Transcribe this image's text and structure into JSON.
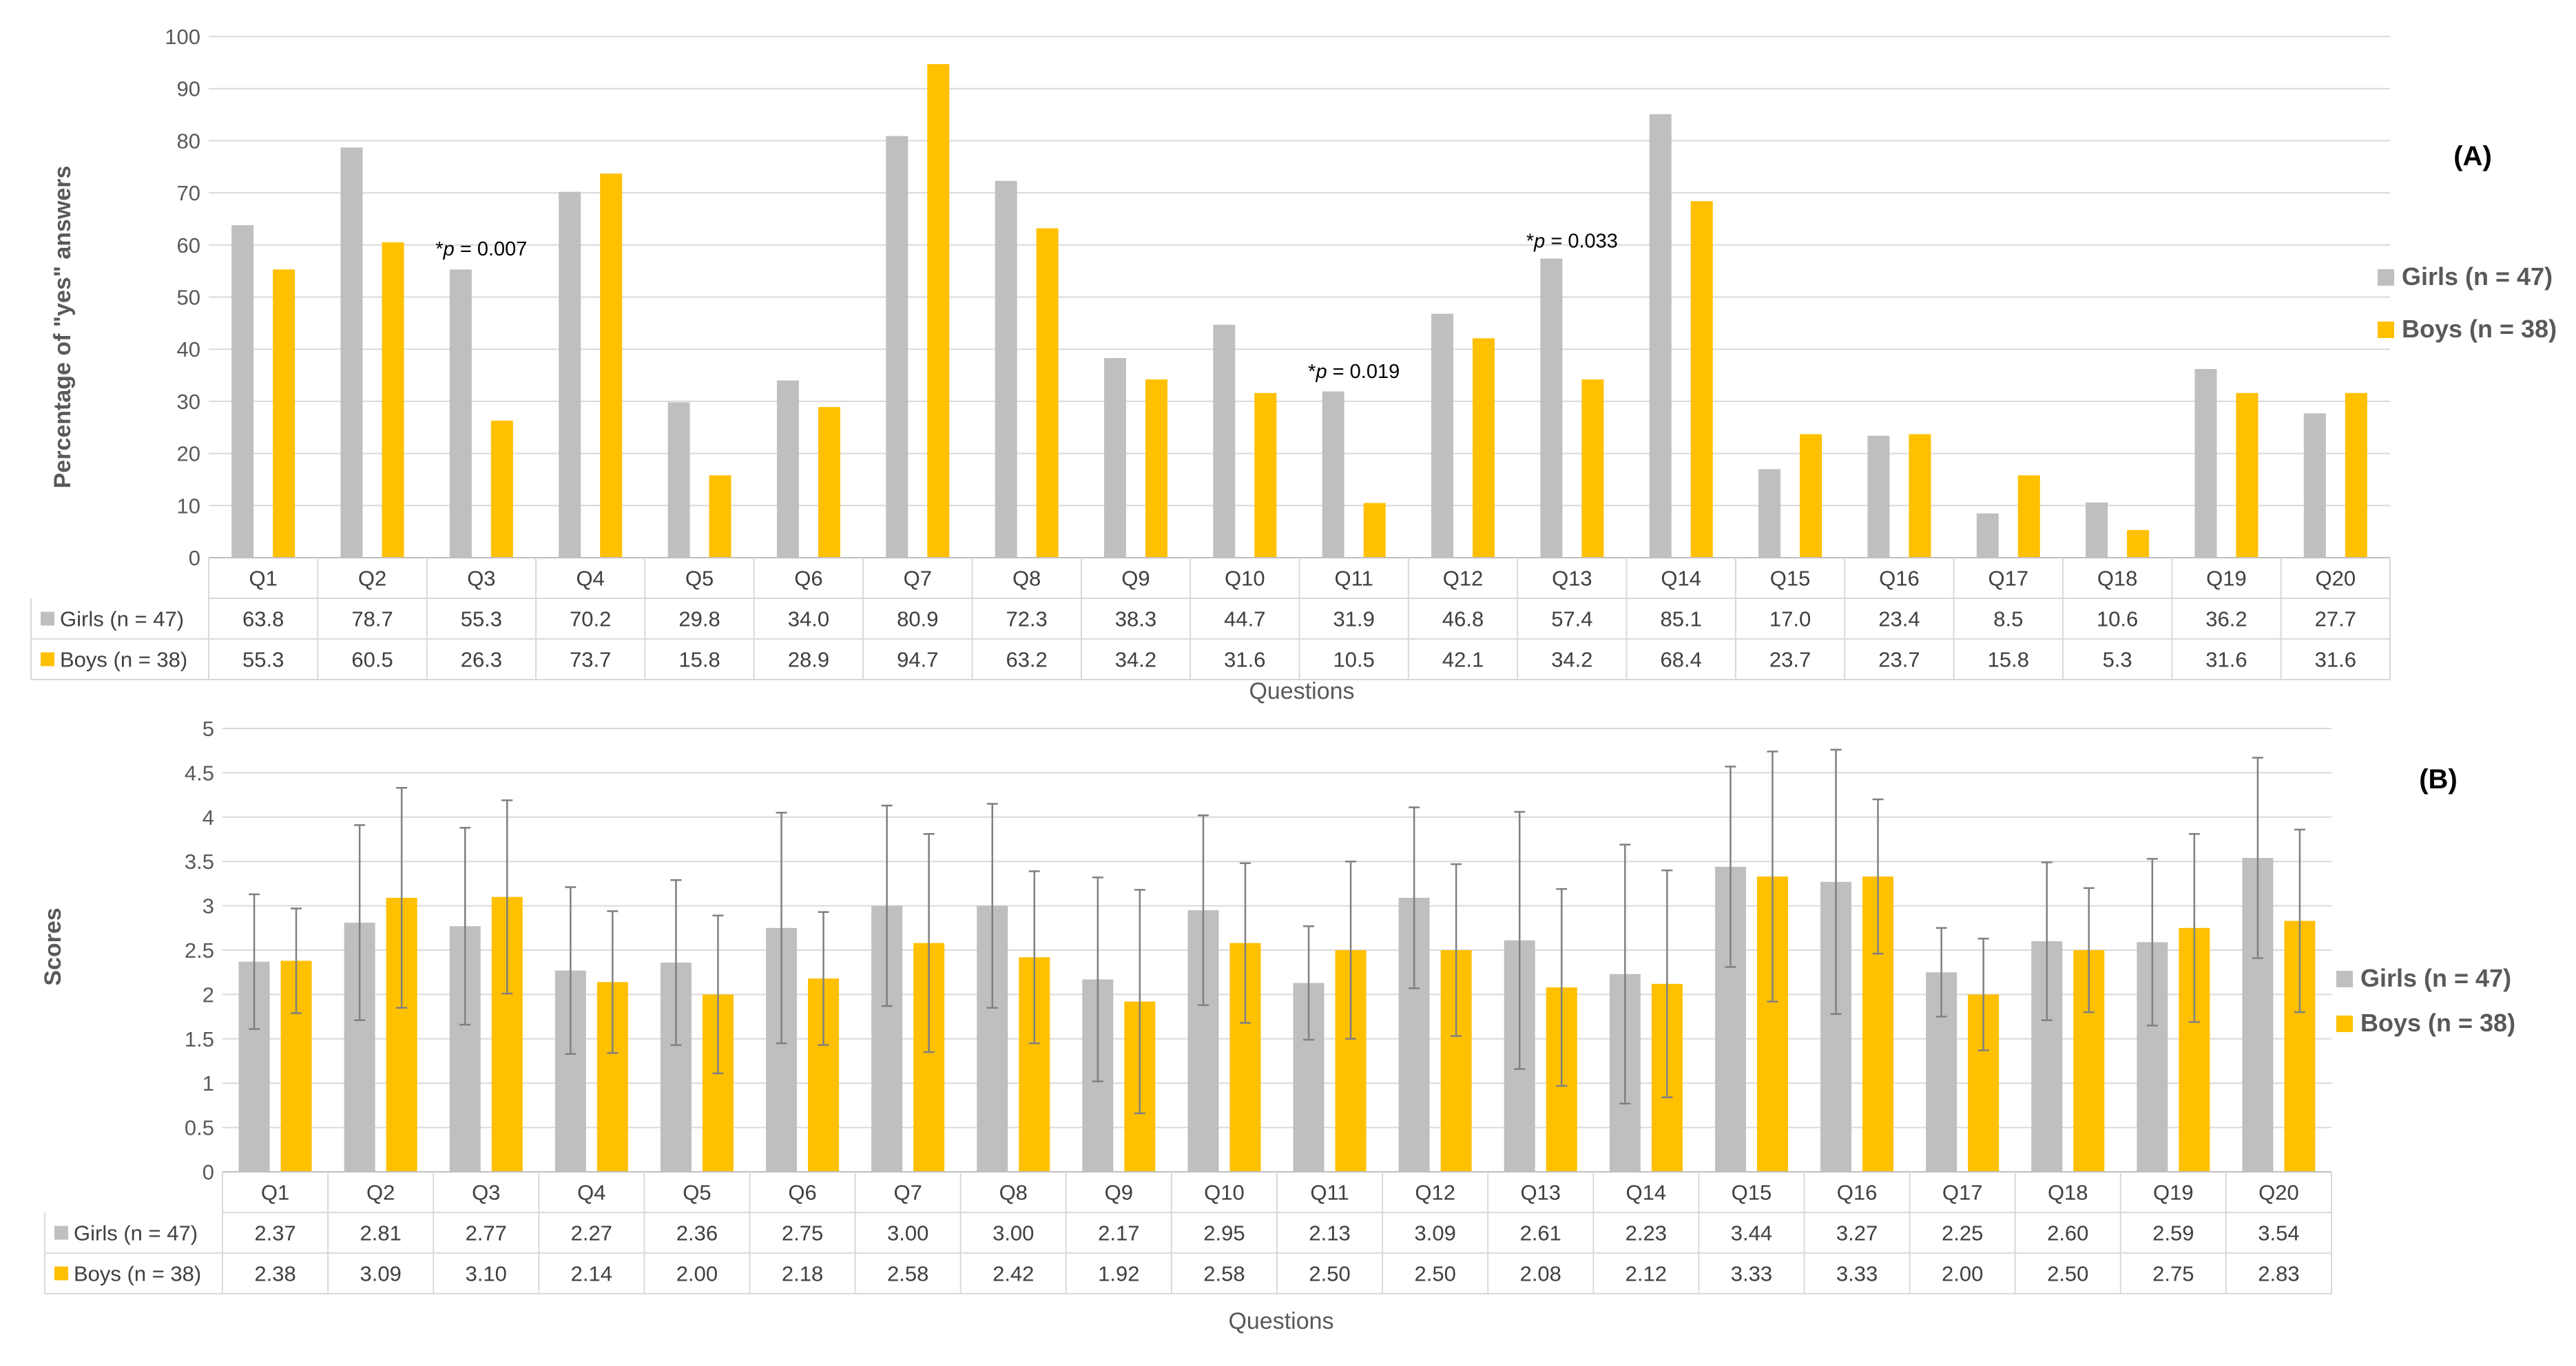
{
  "chart_data": [
    {
      "type": "bar",
      "panel_label": "(A)",
      "ylabel": "Percentage of \"yes\" answers",
      "xlabel": "Questions",
      "ylim": [
        0,
        100
      ],
      "yticks": [
        0,
        10,
        20,
        30,
        40,
        50,
        60,
        70,
        80,
        90,
        100
      ],
      "grid": true,
      "legend_position": "right",
      "categories": [
        "Q1",
        "Q2",
        "Q3",
        "Q4",
        "Q5",
        "Q6",
        "Q7",
        "Q8",
        "Q9",
        "Q10",
        "Q11",
        "Q12",
        "Q13",
        "Q14",
        "Q15",
        "Q16",
        "Q17",
        "Q18",
        "Q19",
        "Q20"
      ],
      "series": [
        {
          "name": "Girls (n = 47)",
          "color": "#bfbfbf",
          "values": [
            63.8,
            78.7,
            55.3,
            70.2,
            29.8,
            34.0,
            80.9,
            72.3,
            38.3,
            44.7,
            31.9,
            46.8,
            57.4,
            85.1,
            17.0,
            23.4,
            8.5,
            10.6,
            36.2,
            27.7
          ],
          "labels": [
            "63.8",
            "78.7",
            "55.3",
            "70.2",
            "29.8",
            "34.0",
            "80.9",
            "72.3",
            "38.3",
            "44.7",
            "31.9",
            "46.8",
            "57.4",
            "85.1",
            "17.0",
            "23.4",
            "8.5",
            "10.6",
            "36.2",
            "27.7"
          ]
        },
        {
          "name": "Boys (n = 38)",
          "color": "#ffc000",
          "values": [
            55.3,
            60.5,
            26.3,
            73.7,
            15.8,
            28.9,
            94.7,
            63.2,
            34.2,
            31.6,
            10.5,
            42.1,
            34.2,
            68.4,
            23.7,
            23.7,
            15.8,
            5.3,
            31.6,
            31.6
          ],
          "labels": [
            "55.3",
            "60.5",
            "26.3",
            "73.7",
            "15.8",
            "28.9",
            "94.7",
            "63.2",
            "34.2",
            "31.6",
            "10.5",
            "42.1",
            "34.2",
            "68.4",
            "23.7",
            "23.7",
            "15.8",
            "5.3",
            "31.6",
            "31.6"
          ]
        }
      ],
      "annotations": [
        {
          "category_index": 2,
          "star": "*",
          "p": "p",
          "rest": " = 0.007",
          "y": 58
        },
        {
          "category_index": 10,
          "star": "*",
          "p": "p",
          "rest": " = 0.019",
          "y": 34.5
        },
        {
          "category_index": 12,
          "star": "*",
          "p": "p",
          "rest": " = 0.033",
          "y": 59.5
        }
      ]
    },
    {
      "type": "bar",
      "panel_label": "(B)",
      "ylabel": "Scores",
      "xlabel": "Questions",
      "ylim": [
        0,
        5
      ],
      "yticks": [
        0,
        0.5,
        1,
        1.5,
        2,
        2.5,
        3,
        3.5,
        4,
        4.5,
        5
      ],
      "ytick_labels": [
        "0",
        "0.5",
        "1",
        "1.5",
        "2",
        "2.5",
        "3",
        "3.5",
        "4",
        "4.5",
        "5"
      ],
      "grid": true,
      "legend_position": "right",
      "categories": [
        "Q1",
        "Q2",
        "Q3",
        "Q4",
        "Q5",
        "Q6",
        "Q7",
        "Q8",
        "Q9",
        "Q10",
        "Q11",
        "Q12",
        "Q13",
        "Q14",
        "Q15",
        "Q16",
        "Q17",
        "Q18",
        "Q19",
        "Q20"
      ],
      "series": [
        {
          "name": "Girls (n = 47)",
          "color": "#bfbfbf",
          "values": [
            2.37,
            2.81,
            2.77,
            2.27,
            2.36,
            2.75,
            3.0,
            3.0,
            2.17,
            2.95,
            2.13,
            3.09,
            2.61,
            2.23,
            3.44,
            3.27,
            2.25,
            2.6,
            2.59,
            3.54
          ],
          "labels": [
            "2.37",
            "2.81",
            "2.77",
            "2.27",
            "2.36",
            "2.75",
            "3.00",
            "3.00",
            "2.17",
            "2.95",
            "2.13",
            "3.09",
            "2.61",
            "2.23",
            "3.44",
            "3.27",
            "2.25",
            "2.60",
            "2.59",
            "3.54"
          ],
          "error": [
            0.76,
            1.1,
            1.11,
            0.94,
            0.93,
            1.3,
            1.13,
            1.15,
            1.15,
            1.07,
            0.64,
            1.02,
            1.45,
            1.46,
            1.13,
            1.49,
            0.5,
            0.89,
            0.94,
            1.13
          ]
        },
        {
          "name": "Boys (n = 38)",
          "color": "#ffc000",
          "values": [
            2.38,
            3.09,
            3.1,
            2.14,
            2.0,
            2.18,
            2.58,
            2.42,
            1.92,
            2.58,
            2.5,
            2.5,
            2.08,
            2.12,
            3.33,
            3.33,
            2.0,
            2.5,
            2.75,
            2.83
          ],
          "labels": [
            "2.38",
            "3.09",
            "3.10",
            "2.14",
            "2.00",
            "2.18",
            "2.58",
            "2.42",
            "1.92",
            "2.58",
            "2.50",
            "2.50",
            "2.08",
            "2.12",
            "3.33",
            "3.33",
            "2.00",
            "2.50",
            "2.75",
            "2.83"
          ],
          "error": [
            0.59,
            1.24,
            1.09,
            0.8,
            0.89,
            0.75,
            1.23,
            0.97,
            1.26,
            0.9,
            1.0,
            0.97,
            1.11,
            1.28,
            1.41,
            0.87,
            0.63,
            0.7,
            1.06,
            1.03
          ]
        }
      ]
    }
  ]
}
